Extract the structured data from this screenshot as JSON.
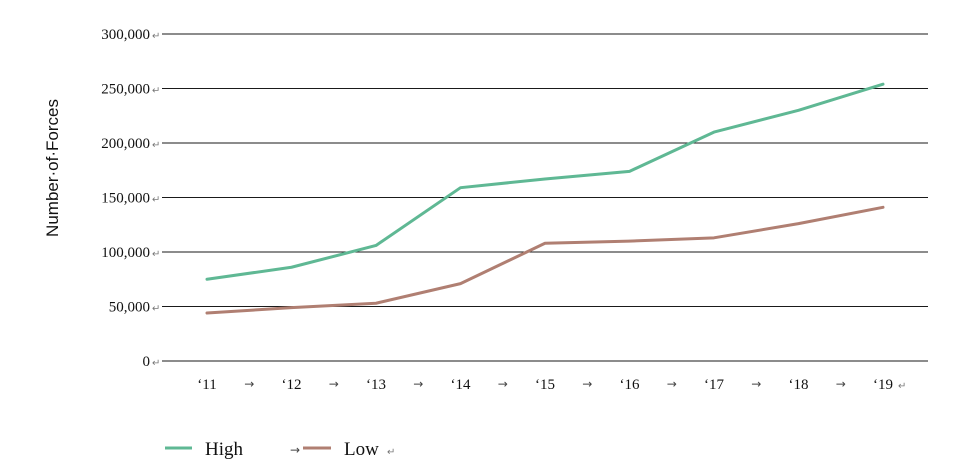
{
  "chart_data": {
    "type": "line",
    "ylabel": "Number·of·Forces",
    "categories": [
      "‘11",
      "‘12",
      "‘13",
      "‘14",
      "‘15",
      "‘16",
      "‘17",
      "‘18",
      "‘19"
    ],
    "yticks": [
      "300,000",
      "250,000",
      "200,000",
      "150,000",
      "100,000",
      "50,000",
      "0"
    ],
    "ylim": [
      0,
      300000
    ],
    "grid": true,
    "legend_position": "bottom-left",
    "series": [
      {
        "name": "High",
        "color": "#5fb894",
        "values": [
          75000,
          86000,
          106000,
          159000,
          167000,
          174000,
          210000,
          230000,
          254000
        ]
      },
      {
        "name": "Low",
        "color": "#b07f72",
        "values": [
          44000,
          49000,
          53000,
          71000,
          108000,
          110000,
          113000,
          126000,
          141000
        ]
      }
    ]
  }
}
